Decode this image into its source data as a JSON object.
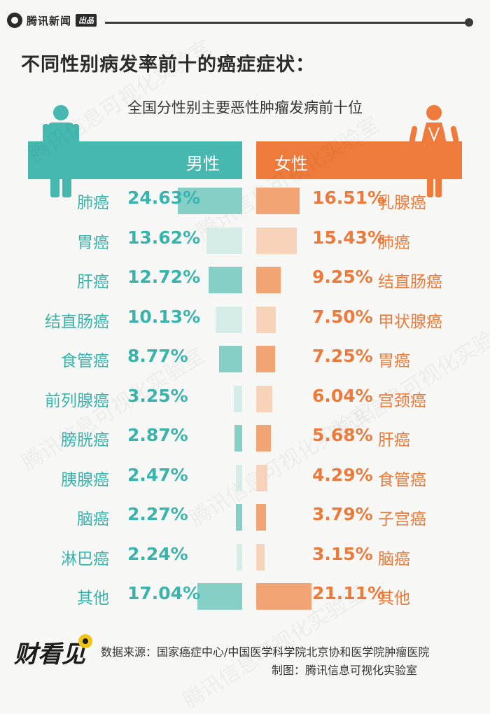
{
  "header": {
    "brand": "腾讯新闻",
    "brand_tag": "出品",
    "headline": "不同性别病发率前十的癌症症状：",
    "subtitle": "全国分性别主要恶性肿瘤发病前十位"
  },
  "chart_data": {
    "type": "bar",
    "title": "全国分性别主要恶性肿瘤发病前十位",
    "orientation": "horizontal-butterfly",
    "value_unit": "%",
    "series": [
      {
        "name": "男性",
        "color": "#46b8b0",
        "categories": [
          "肺癌",
          "胃癌",
          "肝癌",
          "结直肠癌",
          "食管癌",
          "前列腺癌",
          "膀胱癌",
          "胰腺癌",
          "脑癌",
          "淋巴癌",
          "其他"
        ],
        "values": [
          24.63,
          13.62,
          12.72,
          10.13,
          8.77,
          3.25,
          2.87,
          2.47,
          2.27,
          2.24,
          17.04
        ],
        "labels": [
          "24.63%",
          "13.62%",
          "12.72%",
          "10.13%",
          "8.77%",
          "3.25%",
          "2.87%",
          "2.47%",
          "2.27%",
          "2.24%",
          "17.04%"
        ]
      },
      {
        "name": "女性",
        "color": "#ee7b3b",
        "categories": [
          "乳腺癌",
          "肺癌",
          "结直肠癌",
          "甲状腺癌",
          "胃癌",
          "宫颈癌",
          "肝癌",
          "食管癌",
          "子宫癌",
          "脑癌",
          "其他"
        ],
        "values": [
          16.51,
          15.43,
          9.25,
          7.5,
          7.25,
          6.04,
          5.68,
          4.29,
          3.79,
          3.15,
          21.11
        ],
        "labels": [
          "16.51%",
          "15.43%",
          "9.25%",
          "7.50%",
          "7.25%",
          "6.04%",
          "5.68%",
          "4.29%",
          "3.79%",
          "3.15%",
          "21.11%"
        ]
      }
    ]
  },
  "colors": {
    "male_band": "#46b8b0",
    "male_text": "#3bb3ad",
    "male_bar_dark": "#86cfc7",
    "male_bar_light": "#d6ece9",
    "female_band": "#ee7b3b",
    "female_text": "#ec7a3a",
    "female_bar_dark": "#f2a474",
    "female_bar_light": "#f7d3b9"
  },
  "watermark": "腾讯信息可视化实验室",
  "footer": {
    "logo_text": "财看见",
    "source": "数据来源：国家癌症中心/中国医学科学院北京协和医学院肿瘤医院",
    "credit": "制图：腾讯信息可视化实验室"
  }
}
